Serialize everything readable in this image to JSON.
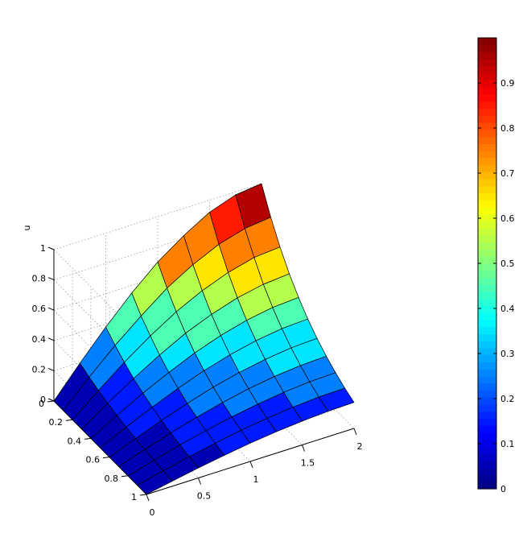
{
  "chart_data": {
    "type": "surface",
    "title": "",
    "zlabel": "u",
    "x_axis": {
      "range": [
        0,
        2
      ],
      "ticks": [
        "0",
        "0.5",
        "1",
        "1.5",
        "2"
      ]
    },
    "y_axis": {
      "range": [
        0,
        1
      ],
      "ticks": [
        "0",
        "0.2",
        "0.4",
        "0.6",
        "0.8",
        "1"
      ]
    },
    "z_axis": {
      "range": [
        0,
        1
      ],
      "ticks": [
        "0",
        "0.2",
        "0.4",
        "0.6",
        "0.8",
        "1"
      ]
    },
    "x_values": [
      0,
      0.25,
      0.5,
      0.75,
      1.0,
      1.25,
      1.5,
      1.75,
      2.0
    ],
    "t_values": [
      0,
      0.1,
      0.2,
      0.3,
      0.4,
      0.5,
      0.6,
      0.7,
      0.8,
      0.9,
      1.0
    ],
    "u_values": [
      [
        0,
        0.195,
        0.38,
        0.55,
        0.7,
        0.82,
        0.92,
        0.98,
        1.0
      ],
      [
        0,
        0.165,
        0.32,
        0.46,
        0.59,
        0.69,
        0.77,
        0.82,
        0.84
      ],
      [
        0,
        0.138,
        0.27,
        0.39,
        0.495,
        0.58,
        0.645,
        0.69,
        0.705
      ],
      [
        0,
        0.116,
        0.225,
        0.325,
        0.415,
        0.485,
        0.54,
        0.575,
        0.59
      ],
      [
        0,
        0.097,
        0.19,
        0.272,
        0.347,
        0.407,
        0.453,
        0.483,
        0.495
      ],
      [
        0,
        0.082,
        0.159,
        0.229,
        0.291,
        0.341,
        0.38,
        0.405,
        0.415
      ],
      [
        0,
        0.068,
        0.133,
        0.191,
        0.244,
        0.286,
        0.318,
        0.34,
        0.348
      ],
      [
        0,
        0.057,
        0.112,
        0.161,
        0.204,
        0.24,
        0.267,
        0.285,
        0.292
      ],
      [
        0,
        0.048,
        0.094,
        0.135,
        0.171,
        0.201,
        0.224,
        0.239,
        0.245
      ],
      [
        0,
        0.04,
        0.079,
        0.113,
        0.144,
        0.169,
        0.188,
        0.2,
        0.205
      ],
      [
        0,
        0.034,
        0.066,
        0.095,
        0.121,
        0.141,
        0.157,
        0.168,
        0.172
      ]
    ],
    "colormap": "jet",
    "color_levels": 10,
    "colorbar": {
      "range": [
        0,
        1
      ],
      "ticks": [
        "0",
        "0.1",
        "0.2",
        "0.3",
        "0.4",
        "0.5",
        "0.6",
        "0.7",
        "0.8",
        "0.9"
      ]
    },
    "grid": true
  }
}
